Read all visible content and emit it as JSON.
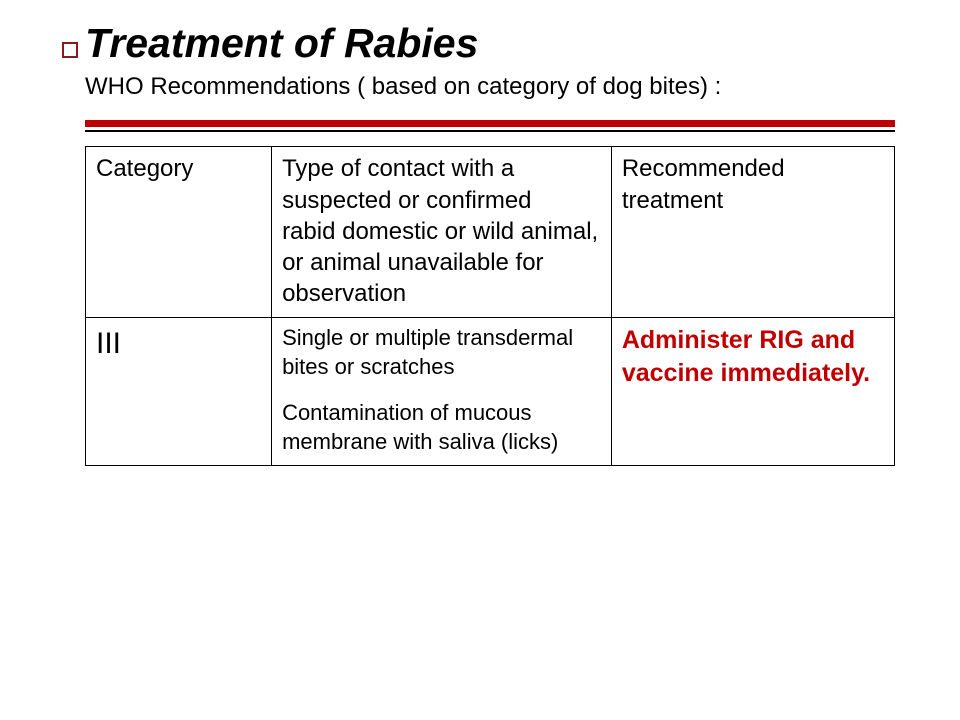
{
  "title": {
    "text": "Treatment of Rabies",
    "fontsize": 41,
    "color": "#000000"
  },
  "subtitle": {
    "text": "WHO Recommendations ( based on category of dog bites) :",
    "fontsize": 24,
    "color": "#000000"
  },
  "rule": {
    "thick_color": "#c00000",
    "thin_color": "#000000",
    "thick_width": 7,
    "thin_width": 2
  },
  "table": {
    "header": {
      "category": "Category",
      "contact": "Type of contact with a suspected or confirmed\nrabid domestic or wild animal, or animal unavailable for observation",
      "recommended": "Recommended treatment",
      "fontsize": 24,
      "color": "#000000"
    },
    "row": {
      "category": "III",
      "category_fontsize": 30,
      "contact_p1": "Single or multiple transdermal bites or scratches",
      "contact_p2": "Contamination of mucous membrane with saliva (licks)",
      "contact_fontsize": 22,
      "recommended": "Administer RIG and vaccine immediately.",
      "recommended_fontsize": 25,
      "recommended_color": "#c00000"
    },
    "border_color": "#000000"
  },
  "background_color": "#ffffff"
}
